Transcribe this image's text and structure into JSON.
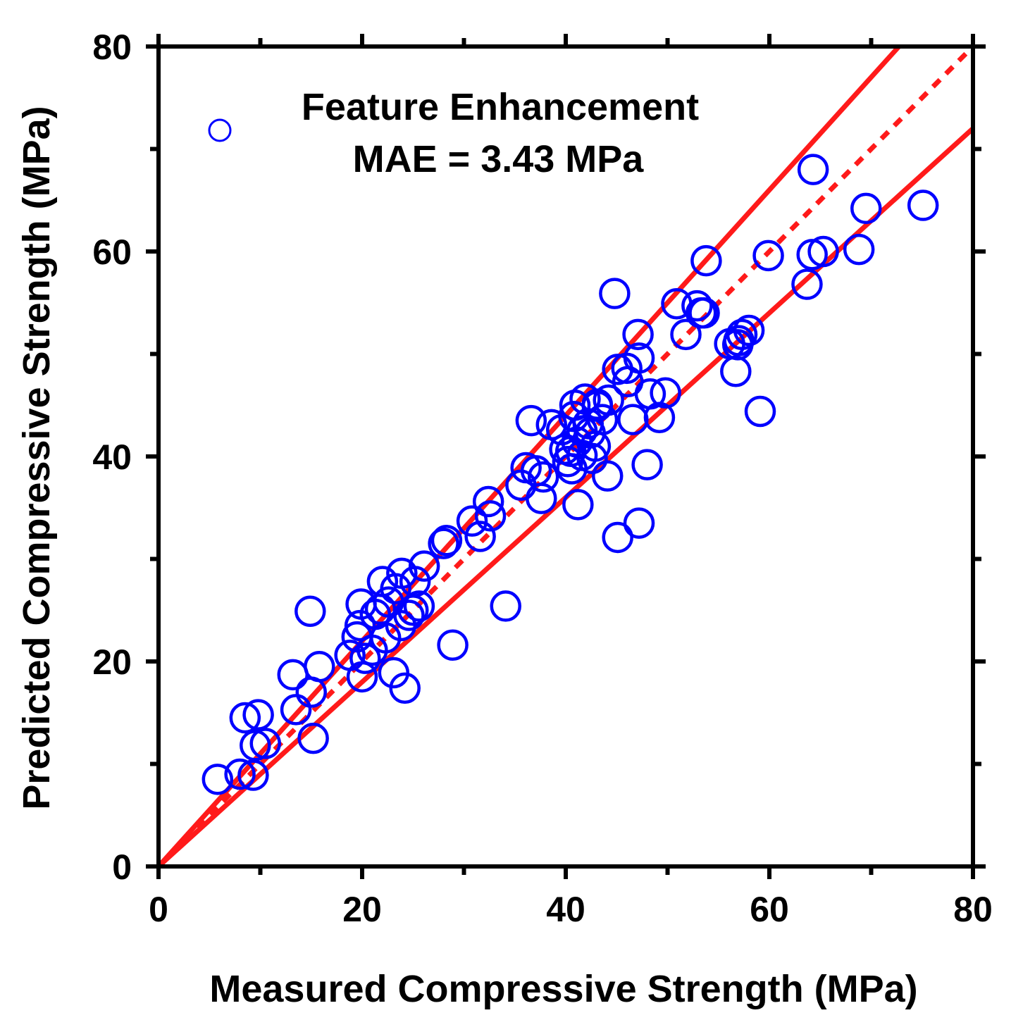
{
  "chart_data": {
    "type": "scatter",
    "xlabel": "Measured Compressive Strength (MPa)",
    "ylabel": "Predicted Compressive Strength (MPa)",
    "xlim": [
      0,
      80
    ],
    "ylim": [
      0,
      80
    ],
    "x_ticks": [
      0,
      20,
      40,
      60,
      80
    ],
    "y_ticks": [
      0,
      20,
      40,
      60,
      80
    ],
    "legend": {
      "series_name": "Feature Enhancement",
      "metric": "MAE = 3.43 MPa",
      "placement": "top-left"
    },
    "colors": {
      "points": "#0000ff",
      "reference_lines": "#ff1a1a",
      "axes": "#000000"
    },
    "reference_lines": [
      {
        "name": "1:1 line",
        "style": "dotted",
        "slope": 1.0
      },
      {
        "name": "upper bound",
        "style": "solid",
        "slope": 1.1
      },
      {
        "name": "lower bound",
        "style": "solid",
        "slope": 0.9
      }
    ],
    "series": [
      {
        "name": "Feature Enhancement",
        "marker": "open-circle",
        "points": [
          [
            5.8,
            8.5
          ],
          [
            8.0,
            9.0
          ],
          [
            8.5,
            14.5
          ],
          [
            9.3,
            8.9
          ],
          [
            9.8,
            14.8
          ],
          [
            9.5,
            11.8
          ],
          [
            10.5,
            12.0
          ],
          [
            13.2,
            18.7
          ],
          [
            13.5,
            15.3
          ],
          [
            15.0,
            17.0
          ],
          [
            15.2,
            12.5
          ],
          [
            15.8,
            19.5
          ],
          [
            14.9,
            24.9
          ],
          [
            18.8,
            20.6
          ],
          [
            19.5,
            22.4
          ],
          [
            20.0,
            18.5
          ],
          [
            20.3,
            20.3
          ],
          [
            19.8,
            23.5
          ],
          [
            19.9,
            25.6
          ],
          [
            21.0,
            21.1
          ],
          [
            21.3,
            24.6
          ],
          [
            21.8,
            25.1
          ],
          [
            22.3,
            22.3
          ],
          [
            22.6,
            25.8
          ],
          [
            23.3,
            27.1
          ],
          [
            22.0,
            27.8
          ],
          [
            23.9,
            28.6
          ],
          [
            23.1,
            18.9
          ],
          [
            23.8,
            23.5
          ],
          [
            24.2,
            17.4
          ],
          [
            24.6,
            24.5
          ],
          [
            25.0,
            25.0
          ],
          [
            25.6,
            25.4
          ],
          [
            25.2,
            27.8
          ],
          [
            26.1,
            29.3
          ],
          [
            28.0,
            31.5
          ],
          [
            28.3,
            31.8
          ],
          [
            28.9,
            21.6
          ],
          [
            30.8,
            33.7
          ],
          [
            31.6,
            32.2
          ],
          [
            32.4,
            35.6
          ],
          [
            32.6,
            34.2
          ],
          [
            34.1,
            25.4
          ],
          [
            35.6,
            37.2
          ],
          [
            36.1,
            38.9
          ],
          [
            36.6,
            43.5
          ],
          [
            37.1,
            38.6
          ],
          [
            37.6,
            35.9
          ],
          [
            37.8,
            38.0
          ],
          [
            38.6,
            43.1
          ],
          [
            39.6,
            42.6
          ],
          [
            39.9,
            40.7
          ],
          [
            40.5,
            40.5
          ],
          [
            40.2,
            39.5
          ],
          [
            40.8,
            43.9
          ],
          [
            40.9,
            45.0
          ],
          [
            40.6,
            38.8
          ],
          [
            41.2,
            35.3
          ],
          [
            41.1,
            41.4
          ],
          [
            41.6,
            42.5
          ],
          [
            41.9,
            45.6
          ],
          [
            42.2,
            43.2
          ],
          [
            42.4,
            42.3
          ],
          [
            41.6,
            40.1
          ],
          [
            42.6,
            39.8
          ],
          [
            42.9,
            41.0
          ],
          [
            43.1,
            44.9
          ],
          [
            43.6,
            43.6
          ],
          [
            43.1,
            45.1
          ],
          [
            44.2,
            45.5
          ],
          [
            44.1,
            38.1
          ],
          [
            44.8,
            55.9
          ],
          [
            45.1,
            48.5
          ],
          [
            45.1,
            32.1
          ],
          [
            46.0,
            48.6
          ],
          [
            46.1,
            47.3
          ],
          [
            46.6,
            43.6
          ],
          [
            47.1,
            51.9
          ],
          [
            47.2,
            49.6
          ],
          [
            47.2,
            33.5
          ],
          [
            48.0,
            39.2
          ],
          [
            48.3,
            46.1
          ],
          [
            49.2,
            43.8
          ],
          [
            49.8,
            46.2
          ],
          [
            50.9,
            54.9
          ],
          [
            51.8,
            51.9
          ],
          [
            52.9,
            54.7
          ],
          [
            53.3,
            54.0
          ],
          [
            53.6,
            54.0
          ],
          [
            53.8,
            59.1
          ],
          [
            56.1,
            51.0
          ],
          [
            56.7,
            48.3
          ],
          [
            56.9,
            50.9
          ],
          [
            57.0,
            51.3
          ],
          [
            57.3,
            51.9
          ],
          [
            58.0,
            52.3
          ],
          [
            59.1,
            44.4
          ],
          [
            59.9,
            59.6
          ],
          [
            63.7,
            56.8
          ],
          [
            64.2,
            59.7
          ],
          [
            65.3,
            60.0
          ],
          [
            64.3,
            68.0
          ],
          [
            68.8,
            60.2
          ],
          [
            69.5,
            64.2
          ],
          [
            75.1,
            64.5
          ]
        ]
      }
    ]
  }
}
